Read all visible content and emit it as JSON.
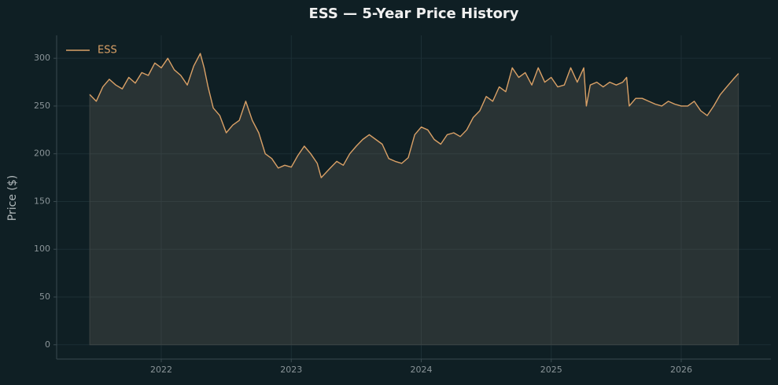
{
  "chart_data": {
    "type": "line",
    "title": "ESS — 5-Year Price History",
    "y_label": "Price ($)",
    "x": [
      2021.45,
      2021.5,
      2021.55,
      2021.6,
      2021.65,
      2021.7,
      2021.75,
      2021.8,
      2021.85,
      2021.9,
      2021.95,
      2022.0,
      2022.05,
      2022.1,
      2022.15,
      2022.2,
      2022.25,
      2022.3,
      2022.33,
      2022.36,
      2022.4,
      2022.45,
      2022.5,
      2022.55,
      2022.6,
      2022.65,
      2022.7,
      2022.75,
      2022.8,
      2022.85,
      2022.9,
      2022.95,
      2023.0,
      2023.05,
      2023.1,
      2023.15,
      2023.2,
      2023.23,
      2023.3,
      2023.35,
      2023.4,
      2023.45,
      2023.5,
      2023.55,
      2023.6,
      2023.65,
      2023.7,
      2023.75,
      2023.8,
      2023.85,
      2023.9,
      2023.95,
      2024.0,
      2024.05,
      2024.1,
      2024.15,
      2024.2,
      2024.25,
      2024.3,
      2024.35,
      2024.4,
      2024.45,
      2024.5,
      2024.55,
      2024.6,
      2024.65,
      2024.7,
      2024.75,
      2024.8,
      2024.85,
      2024.9,
      2024.95,
      2025.0,
      2025.05,
      2025.1,
      2025.15,
      2025.2,
      2025.25,
      2025.27,
      2025.3,
      2025.35,
      2025.4,
      2025.45,
      2025.5,
      2025.55,
      2025.58,
      2025.6,
      2025.65,
      2025.7,
      2025.75,
      2025.8,
      2025.85,
      2025.9,
      2025.95,
      2026.0,
      2026.05,
      2026.1,
      2026.15,
      2026.2,
      2026.25,
      2026.3,
      2026.35,
      2026.4,
      2026.44
    ],
    "series": [
      {
        "name": "ESS",
        "color": "#d9a066",
        "values": [
          262,
          255,
          270,
          278,
          272,
          268,
          280,
          274,
          285,
          282,
          295,
          290,
          300,
          288,
          282,
          272,
          292,
          305,
          290,
          270,
          248,
          240,
          222,
          230,
          235,
          255,
          235,
          222,
          200,
          195,
          185,
          188,
          186,
          198,
          208,
          200,
          190,
          175,
          185,
          192,
          188,
          200,
          208,
          215,
          220,
          215,
          210,
          195,
          192,
          190,
          196,
          220,
          228,
          225,
          215,
          210,
          220,
          222,
          218,
          225,
          238,
          245,
          260,
          255,
          270,
          265,
          290,
          280,
          285,
          272,
          290,
          275,
          280,
          270,
          272,
          290,
          275,
          290,
          250,
          272,
          275,
          270,
          275,
          272,
          275,
          280,
          250,
          258,
          258,
          255,
          252,
          250,
          255,
          252,
          250,
          250,
          255,
          245,
          240,
          250,
          262,
          270,
          278,
          284
        ]
      }
    ],
    "xlim": [
      2021.195,
      2026.69
    ],
    "xticks": [
      2022,
      2023,
      2024,
      2025,
      2026
    ],
    "ylim": [
      -15,
      324
    ],
    "yticks": [
      0,
      50,
      100,
      150,
      200,
      250,
      300
    ],
    "grid": true,
    "legend": "upper left",
    "fill_area": true
  }
}
